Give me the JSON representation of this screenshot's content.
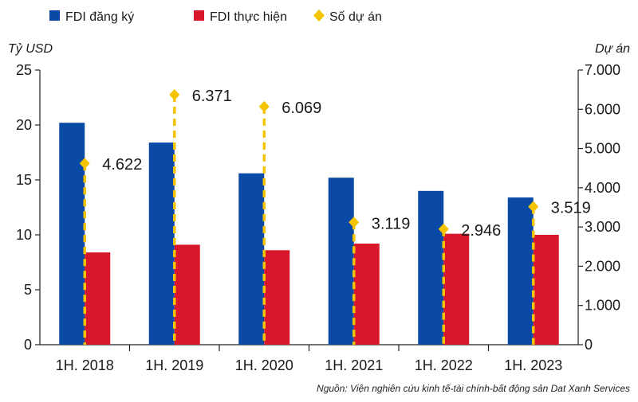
{
  "chart_data": {
    "type": "bar",
    "categories": [
      "1H. 2018",
      "1H. 2019",
      "1H. 2020",
      "1H. 2021",
      "1H. 2022",
      "1H. 2023"
    ],
    "series": [
      {
        "name": "FDI đăng ký",
        "axis": "left",
        "kind": "bar",
        "color": "#0a4aa6",
        "values": [
          20.2,
          18.4,
          15.6,
          15.2,
          14.0,
          13.4
        ]
      },
      {
        "name": "FDI thực hiện",
        "axis": "left",
        "kind": "bar",
        "color": "#d8182a",
        "values": [
          8.4,
          9.1,
          8.6,
          9.2,
          10.1,
          10.0
        ]
      },
      {
        "name": "Số dự án",
        "axis": "right",
        "kind": "dashed-marker",
        "color": "#f5c400",
        "values": [
          4622,
          6371,
          6069,
          3119,
          2946,
          3519
        ],
        "labels": [
          "4.622",
          "6.371",
          "6.069",
          "3.119",
          "2.946",
          "3.519"
        ]
      }
    ],
    "left_axis": {
      "unit": "Tỷ USD",
      "min": 0,
      "max": 25,
      "ticks": [
        "0",
        "5",
        "10",
        "15",
        "20",
        "25"
      ]
    },
    "right_axis": {
      "unit": "Dự án",
      "min": 0,
      "max": 7000,
      "ticks": [
        "0",
        "1.000",
        "2.000",
        "3.000",
        "4.000",
        "5.000",
        "6.000",
        "7.000"
      ]
    },
    "legend_position": "top-left",
    "grid": false,
    "source": "Nguồn: Viện nghiên cứu kinh tế-tài chính-bất động sản Dat Xanh Services"
  }
}
